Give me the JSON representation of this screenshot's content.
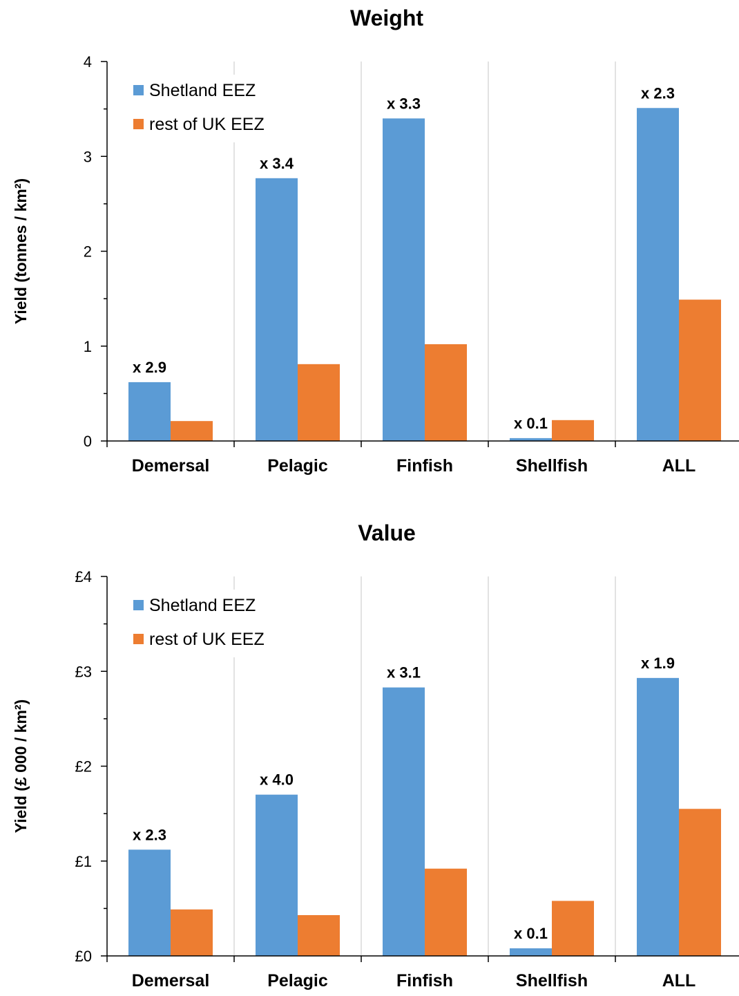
{
  "chart_data": [
    {
      "type": "bar",
      "title": "Weight",
      "ylabel": "Yield (tonnes / km²)",
      "xlabel": "",
      "categories": [
        "Demersal",
        "Pelagic",
        "Finfish",
        "Shellfish",
        "ALL"
      ],
      "ylim": [
        0,
        4
      ],
      "yticks": [
        "0",
        "1",
        "2",
        "3",
        "4"
      ],
      "grid": "vertical category separators",
      "legend_position": "top-left",
      "series": [
        {
          "name": "Shetland EEZ",
          "color": "#5B9BD5",
          "values": [
            0.62,
            2.77,
            3.4,
            0.03,
            3.51
          ]
        },
        {
          "name": "rest of UK EEZ",
          "color": "#ED7D31",
          "values": [
            0.21,
            0.81,
            1.02,
            0.22,
            1.49
          ]
        }
      ],
      "annotations": [
        "x 2.9",
        "x 3.4",
        "x 3.3",
        "x 0.1",
        "x 2.3"
      ]
    },
    {
      "type": "bar",
      "title": "Value",
      "ylabel": "Yield (£ 000 / km²)",
      "xlabel": "",
      "categories": [
        "Demersal",
        "Pelagic",
        "Finfish",
        "Shellfish",
        "ALL"
      ],
      "ylim": [
        0,
        4
      ],
      "yticks": [
        "£0",
        "£1",
        "£2",
        "£3",
        "£4"
      ],
      "grid": "vertical category separators",
      "legend_position": "top-left",
      "series": [
        {
          "name": "Shetland EEZ",
          "color": "#5B9BD5",
          "values": [
            1.12,
            1.7,
            2.83,
            0.08,
            2.93
          ]
        },
        {
          "name": "rest of UK EEZ",
          "color": "#ED7D31",
          "values": [
            0.49,
            0.43,
            0.92,
            0.58,
            1.55
          ]
        }
      ],
      "annotations": [
        "x 2.3",
        "x 4.0",
        "x 3.1",
        "x 0.1",
        "x 1.9"
      ]
    }
  ]
}
